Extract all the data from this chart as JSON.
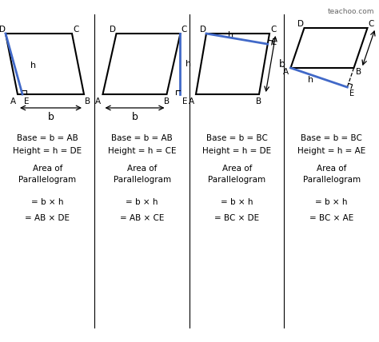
{
  "title": "teachoo.com",
  "bg_color": "#ffffff",
  "blue": "#4169c8",
  "black": "#000000",
  "cols": [
    {
      "text_lines": [
        "Base = b = AB",
        "Height = h = DE",
        "",
        "Area of",
        "Parallelogram",
        "",
        "= b × h",
        "",
        "= AB × DE"
      ]
    },
    {
      "text_lines": [
        "Base = b = AB",
        "Height = h = CE",
        "",
        "Area of",
        "Parallelogram",
        "",
        "= b × h",
        "",
        "= AB × CE"
      ]
    },
    {
      "text_lines": [
        "Base = b = BC",
        "Height = h = DE",
        "",
        "Area of",
        "Parallelogram",
        "",
        "= b × h",
        "",
        "= BC × DE"
      ]
    },
    {
      "text_lines": [
        "Base = b = BC",
        "Height = h = AE",
        "",
        "Area of",
        "Parallelogram",
        "",
        "= b × h",
        "",
        "= BC × AE"
      ]
    }
  ]
}
